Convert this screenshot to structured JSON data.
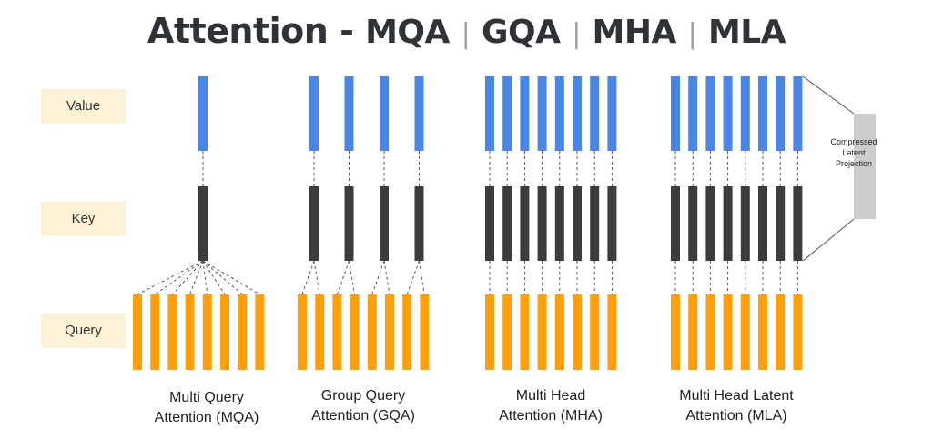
{
  "title": {
    "prefix": "Attention - ",
    "parts": [
      "MQA",
      "GQA",
      "MHA",
      "MLA"
    ],
    "separator": "|"
  },
  "row_labels": {
    "value": "Value",
    "key": "Key",
    "query": "Query"
  },
  "captions": [
    {
      "line1": "Multi Query",
      "line2": "Attention (MQA)"
    },
    {
      "line1": "Group Query",
      "line2": "Attention (GQA)"
    },
    {
      "line1": "Multi Head",
      "line2": "Attention (MHA)"
    },
    {
      "line1": "Multi Head Latent",
      "line2": "Attention (MLA)"
    }
  ],
  "projection": {
    "line1": "Compressed",
    "line2": "Latent",
    "line3": "Projection"
  },
  "colors": {
    "value": "#4a86e8",
    "key": "#3c3c3c",
    "query": "#ff9f0a",
    "projection": "#cccccc",
    "label_bg": "#fdf1d6"
  },
  "structure": {
    "MQA": {
      "kv_heads": 1,
      "query_heads": 8
    },
    "GQA": {
      "kv_heads": 4,
      "query_heads": 8
    },
    "MHA": {
      "kv_heads": 8,
      "query_heads": 8
    },
    "MLA": {
      "kv_heads": 8,
      "query_heads": 8
    }
  }
}
